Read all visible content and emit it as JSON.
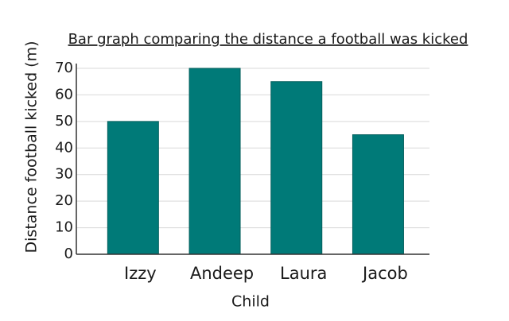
{
  "chart_data": {
    "type": "bar",
    "title": "Bar graph comparing the distance a football was kicked",
    "x_label": "Child",
    "y_label": "Distance football kicked (m)",
    "categories": [
      "Izzy",
      "Andeep",
      "Laura",
      "Jacob"
    ],
    "values": [
      50,
      70,
      65,
      45
    ],
    "color": "#007a78",
    "ylim": [
      0,
      70
    ],
    "yticks": [
      0,
      10,
      20,
      30,
      40,
      50,
      60,
      70
    ],
    "grid": true
  }
}
